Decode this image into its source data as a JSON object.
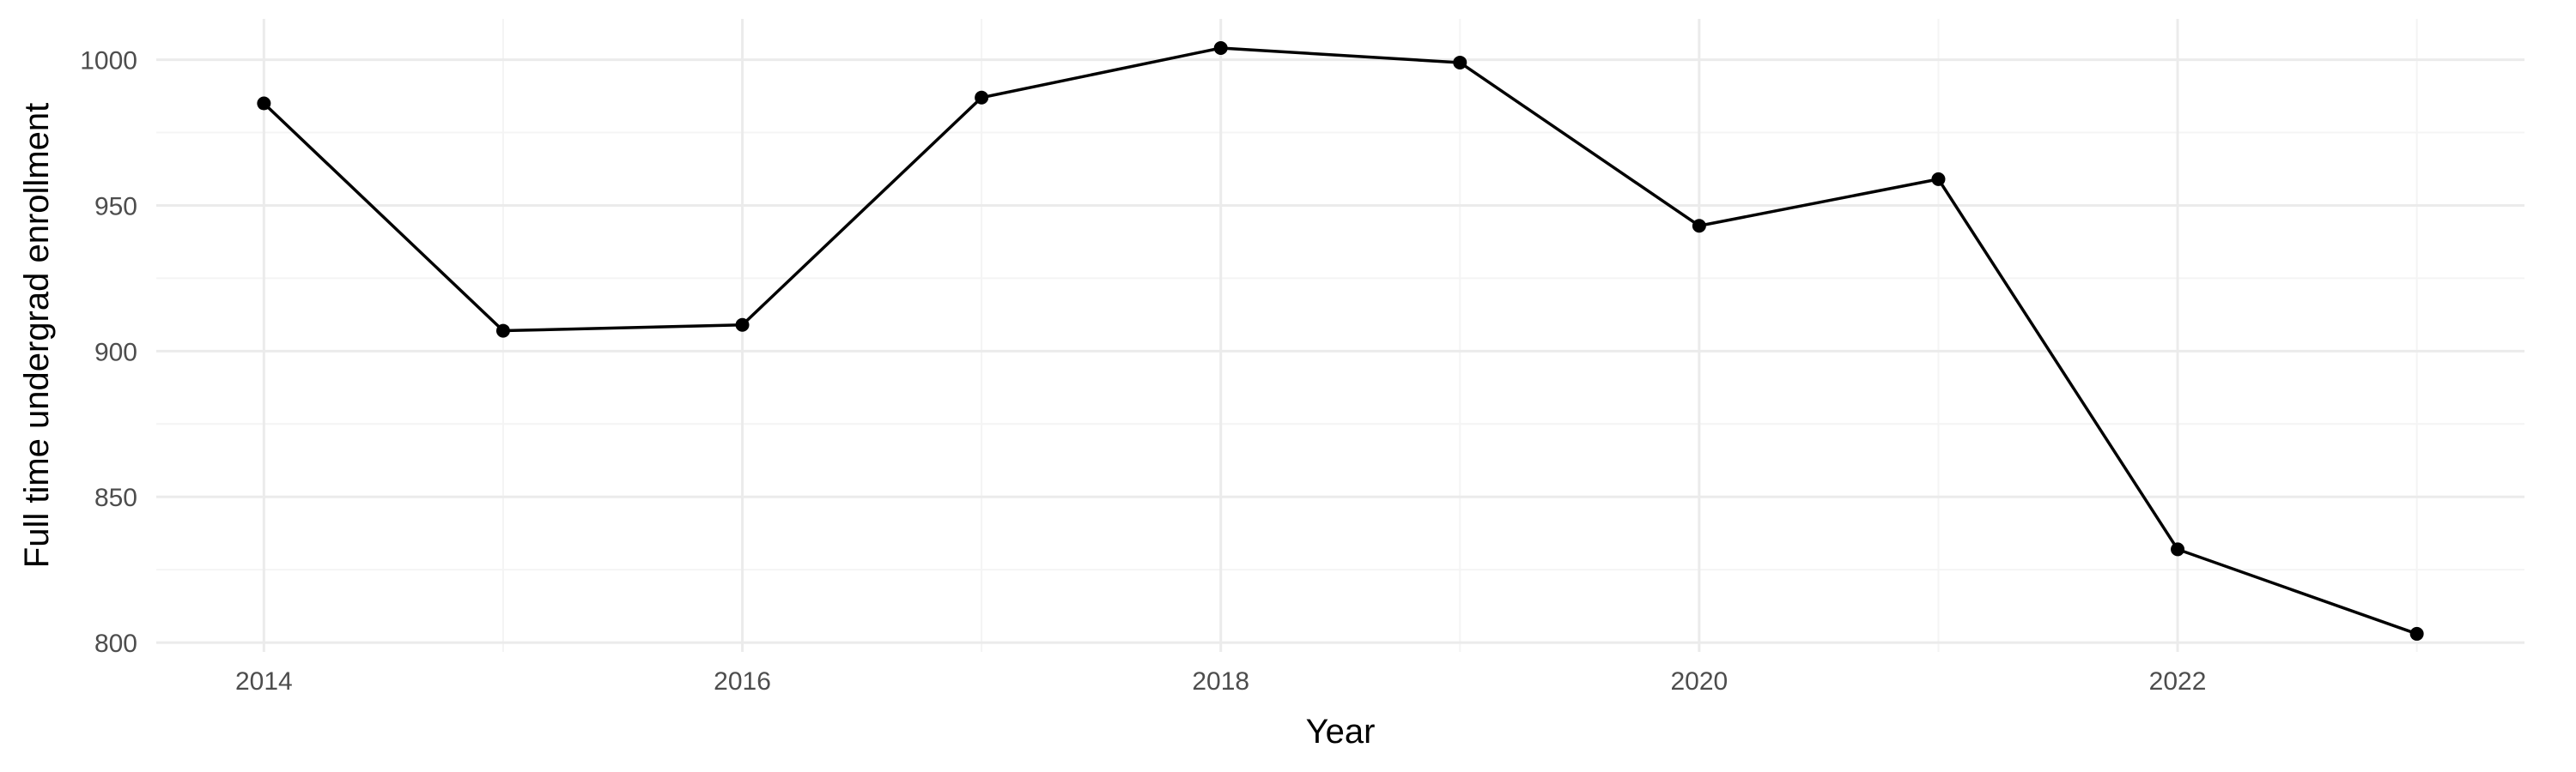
{
  "chart_data": {
    "type": "line",
    "title": "",
    "xlabel": "Year",
    "ylabel": "Full time undergrad enrollment",
    "x": [
      2014,
      2015,
      2016,
      2017,
      2018,
      2019,
      2020,
      2021,
      2022,
      2023
    ],
    "series": [
      {
        "values": [
          985,
          907,
          909,
          987,
          1004,
          999,
          943,
          959,
          832,
          803
        ]
      }
    ],
    "xlim": [
      2013.55,
      2023.45
    ],
    "ylim": [
      796.8,
      1014
    ],
    "x_ticks": [
      2014,
      2016,
      2018,
      2020,
      2022
    ],
    "x_tick_labels": [
      "2014",
      "2016",
      "2018",
      "2020",
      "2022"
    ],
    "y_ticks": [
      800,
      850,
      900,
      950,
      1000
    ],
    "y_tick_labels": [
      "800",
      "850",
      "900",
      "950",
      "1000"
    ],
    "grid": true,
    "legend": "none",
    "colors": {
      "line": "#000000",
      "grid_major": "#ebebeb",
      "grid_minor": "#f4f4f4",
      "tick_text": "#4d4d4d"
    }
  }
}
